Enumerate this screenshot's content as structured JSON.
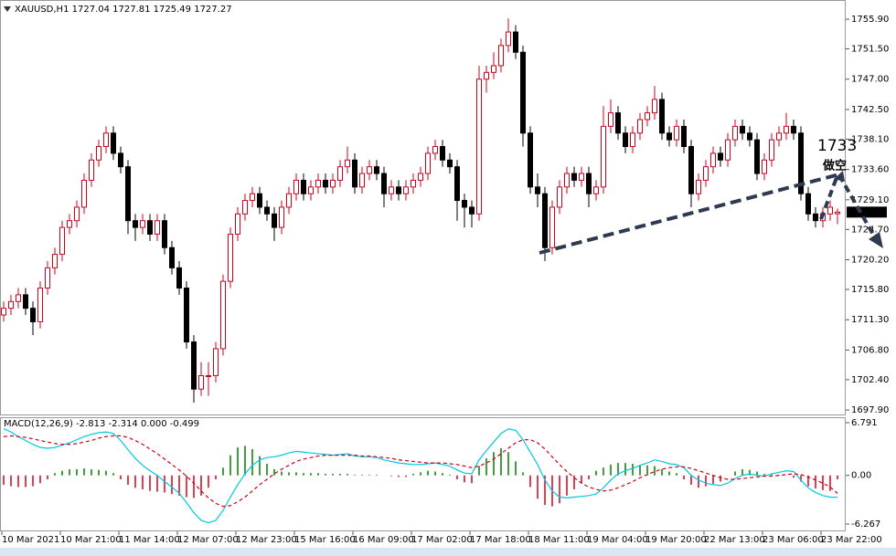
{
  "chart_data": [
    {
      "type": "candlestick",
      "header": "XAUUSD,H1  1727.04 1727.81 1725.49 1727.27",
      "annotations": [
        "1733",
        "做空"
      ],
      "up_color": "#d0021b",
      "down_color": "#000000",
      "categories": [
        "10 Mar 2021",
        null,
        null,
        null,
        null,
        null,
        null,
        null,
        "10 Mar 21:00",
        null,
        null,
        null,
        null,
        null,
        null,
        null,
        "11 Mar 14:00",
        null,
        null,
        null,
        null,
        null,
        null,
        null,
        "12 Mar 07:00",
        null,
        null,
        null,
        null,
        null,
        null,
        null,
        "12 Mar 23:00",
        null,
        null,
        null,
        null,
        null,
        null,
        null,
        "15 Mar 16:00",
        null,
        null,
        null,
        null,
        null,
        null,
        null,
        "16 Mar 09:00",
        null,
        null,
        null,
        null,
        null,
        null,
        null,
        "17 Mar 02:00",
        null,
        null,
        null,
        null,
        null,
        null,
        null,
        "17 Mar 18:00",
        null,
        null,
        null,
        null,
        null,
        null,
        null,
        "18 Mar 11:00",
        null,
        null,
        null,
        null,
        null,
        null,
        null,
        "19 Mar 04:00",
        null,
        null,
        null,
        null,
        null,
        null,
        null,
        "19 Mar 20:00",
        null,
        null,
        null,
        null,
        null,
        null,
        null,
        "22 Mar 13:00",
        null,
        null,
        null,
        null,
        null,
        null,
        null,
        "23 Mar 06:00",
        null,
        null,
        null,
        null,
        null,
        null,
        null,
        "23 Mar 22:00",
        null,
        null
      ],
      "candles": [
        [
          1712,
          1714,
          1711,
          1713
        ],
        [
          1713,
          1715,
          1712,
          1714
        ],
        [
          1714,
          1716,
          1713,
          1715
        ],
        [
          1715,
          1716,
          1712,
          1713
        ],
        [
          1713,
          1714,
          1709,
          1711
        ],
        [
          1711,
          1717,
          1710,
          1716
        ],
        [
          1716,
          1720,
          1715,
          1719
        ],
        [
          1719,
          1722,
          1718,
          1721
        ],
        [
          1721,
          1726,
          1720,
          1725
        ],
        [
          1725,
          1727,
          1724,
          1726
        ],
        [
          1726,
          1729,
          1725,
          1728
        ],
        [
          1728,
          1733,
          1727,
          1732
        ],
        [
          1732,
          1736,
          1731,
          1735
        ],
        [
          1735,
          1738,
          1734,
          1737
        ],
        [
          1737,
          1740,
          1736,
          1739
        ],
        [
          1739,
          1740,
          1735,
          1736
        ],
        [
          1736,
          1737,
          1733,
          1734
        ],
        [
          1734,
          1735,
          1724,
          1726
        ],
        [
          1726,
          1727,
          1723,
          1725
        ],
        [
          1725,
          1727,
          1724,
          1726
        ],
        [
          1726,
          1727,
          1723,
          1724
        ],
        [
          1724,
          1727,
          1723,
          1726
        ],
        [
          1726,
          1727,
          1721,
          1722
        ],
        [
          1722,
          1723,
          1718,
          1719
        ],
        [
          1719,
          1720,
          1715,
          1716
        ],
        [
          1716,
          1717,
          1707,
          1708
        ],
        [
          1708,
          1709,
          1699,
          1701
        ],
        [
          1701,
          1705,
          1700,
          1703
        ],
        [
          1703,
          1705,
          1700,
          1703
        ],
        [
          1703,
          1708,
          1702,
          1707
        ],
        [
          1707,
          1718,
          1706,
          1717
        ],
        [
          1717,
          1725,
          1716,
          1724
        ],
        [
          1724,
          1728,
          1723,
          1727
        ],
        [
          1727,
          1730,
          1726,
          1729
        ],
        [
          1729,
          1731,
          1728,
          1730
        ],
        [
          1730,
          1731,
          1727,
          1728
        ],
        [
          1728,
          1729,
          1726,
          1727
        ],
        [
          1727,
          1728,
          1723,
          1725
        ],
        [
          1725,
          1729,
          1724,
          1728
        ],
        [
          1728,
          1731,
          1727,
          1730
        ],
        [
          1730,
          1733,
          1729,
          1732
        ],
        [
          1732,
          1733,
          1729,
          1730
        ],
        [
          1730,
          1732,
          1729,
          1731
        ],
        [
          1731,
          1733,
          1730,
          1732
        ],
        [
          1732,
          1733,
          1730,
          1731
        ],
        [
          1731,
          1733,
          1730,
          1732
        ],
        [
          1732,
          1735,
          1731,
          1734
        ],
        [
          1734,
          1737,
          1733,
          1735
        ],
        [
          1735,
          1736,
          1730,
          1731
        ],
        [
          1731,
          1734,
          1730,
          1733
        ],
        [
          1733,
          1735,
          1732,
          1734
        ],
        [
          1734,
          1735,
          1732,
          1733
        ],
        [
          1733,
          1734,
          1728,
          1730
        ],
        [
          1730,
          1732,
          1729,
          1731
        ],
        [
          1731,
          1732,
          1729,
          1730
        ],
        [
          1730,
          1732,
          1729,
          1731
        ],
        [
          1731,
          1733,
          1730,
          1732
        ],
        [
          1732,
          1734,
          1731,
          1733
        ],
        [
          1733,
          1737,
          1732,
          1736
        ],
        [
          1736,
          1738,
          1735,
          1737
        ],
        [
          1737,
          1738,
          1734,
          1735
        ],
        [
          1735,
          1736,
          1733,
          1734
        ],
        [
          1734,
          1735,
          1726,
          1729
        ],
        [
          1729,
          1730,
          1725,
          1728
        ],
        [
          1728,
          1729,
          1725,
          1727
        ],
        [
          1727,
          1749,
          1726,
          1747
        ],
        [
          1747,
          1749,
          1745,
          1748
        ],
        [
          1748,
          1751,
          1747,
          1749
        ],
        [
          1749,
          1753,
          1748,
          1752
        ],
        [
          1752,
          1756,
          1751,
          1754
        ],
        [
          1754,
          1755,
          1750,
          1751
        ],
        [
          1751,
          1752,
          1737,
          1739
        ],
        [
          1739,
          1740,
          1730,
          1731
        ],
        [
          1731,
          1733,
          1728,
          1730
        ],
        [
          1730,
          1731,
          1720,
          1722
        ],
        [
          1722,
          1729,
          1721,
          1728
        ],
        [
          1728,
          1732,
          1727,
          1731
        ],
        [
          1731,
          1734,
          1730,
          1733
        ],
        [
          1733,
          1734,
          1731,
          1732
        ],
        [
          1732,
          1734,
          1731,
          1733
        ],
        [
          1733,
          1734,
          1728,
          1730
        ],
        [
          1730,
          1732,
          1729,
          1731
        ],
        [
          1731,
          1743,
          1730,
          1740
        ],
        [
          1740,
          1744,
          1739,
          1742
        ],
        [
          1742,
          1743,
          1738,
          1739
        ],
        [
          1739,
          1740,
          1736,
          1737
        ],
        [
          1737,
          1740,
          1736,
          1739
        ],
        [
          1739,
          1742,
          1738,
          1741
        ],
        [
          1741,
          1743,
          1740,
          1742
        ],
        [
          1742,
          1746,
          1741,
          1744
        ],
        [
          1744,
          1745,
          1738,
          1739
        ],
        [
          1739,
          1740,
          1737,
          1738
        ],
        [
          1738,
          1741,
          1737,
          1740
        ],
        [
          1740,
          1741,
          1736,
          1737
        ],
        [
          1737,
          1738,
          1728,
          1730
        ],
        [
          1730,
          1733,
          1729,
          1732
        ],
        [
          1732,
          1735,
          1731,
          1734
        ],
        [
          1734,
          1737,
          1733,
          1736
        ],
        [
          1736,
          1737,
          1734,
          1735
        ],
        [
          1735,
          1739,
          1734,
          1738
        ],
        [
          1738,
          1741,
          1737,
          1740
        ],
        [
          1740,
          1741,
          1738,
          1739
        ],
        [
          1739,
          1740,
          1737,
          1738
        ],
        [
          1738,
          1739,
          1732,
          1733
        ],
        [
          1733,
          1736,
          1732,
          1735
        ],
        [
          1735,
          1739,
          1734,
          1738
        ],
        [
          1738,
          1740,
          1737,
          1739
        ],
        [
          1739,
          1742,
          1738,
          1740
        ],
        [
          1740,
          1741,
          1738,
          1739
        ],
        [
          1739,
          1740,
          1729,
          1730
        ],
        [
          1730,
          1731,
          1726,
          1727
        ],
        [
          1727,
          1728,
          1725,
          1726
        ],
        [
          1726,
          1728,
          1725,
          1727
        ],
        [
          1727,
          1729,
          1726,
          1728
        ],
        [
          1727.04,
          1727.81,
          1725.49,
          1727.27
        ]
      ],
      "ylim": [
        1697.1,
        1758.75
      ],
      "yticks": [
        {
          "value": 1755.9,
          "label": "1755.90"
        },
        {
          "value": 1751.5,
          "label": "1751.50"
        },
        {
          "value": 1747,
          "label": "1747.00"
        },
        {
          "value": 1742.5,
          "label": "1742.50"
        },
        {
          "value": 1738.1,
          "label": "1738.10"
        },
        {
          "value": 1733.6,
          "label": "1733.60"
        },
        {
          "value": 1729.1,
          "label": "1729.10"
        },
        {
          "value": 1724.7,
          "label": "1724.70"
        },
        {
          "value": 1720.2,
          "label": "1720.20"
        },
        {
          "value": 1715.8,
          "label": "1715.80"
        },
        {
          "value": 1711.3,
          "label": "1711.30"
        },
        {
          "value": 1706.8,
          "label": "1706.80"
        },
        {
          "value": 1702.4,
          "label": "1702.40"
        },
        {
          "value": 1697.9,
          "label": "1697.90"
        }
      ]
    },
    {
      "type": "macd",
      "header": "MACD(12,26,9) -2.813 -2.314 0.000 -0.499",
      "ylim": [
        -7.21,
        7.38
      ],
      "yticks": [
        6.791,
        {
          "value": 0,
          "label": "0.00"
        },
        -6.267
      ],
      "series": [
        {
          "kind": "histogram",
          "color": "#008000",
          "neg_color": "#d0021b",
          "values": [
            -1.2,
            -1.4,
            -1.5,
            -1.5,
            -1.4,
            -1.0,
            -0.5,
            0.3,
            0.6,
            0.8,
            0.8,
            0.9,
            0.8,
            0.7,
            0.6,
            0.3,
            -0.5,
            -1.2,
            -1.6,
            -1.8,
            -2.0,
            -2.1,
            -2.2,
            -2.4,
            -2.6,
            -2.8,
            -2.9,
            -2.6,
            -1.6,
            -0.5,
            1.0,
            2.6,
            3.6,
            3.8,
            3.4,
            2.5,
            1.5,
            0.8,
            0.5,
            0.4,
            0.4,
            0.3,
            0.3,
            0.3,
            0.2,
            0.2,
            0.2,
            0.2,
            0.1,
            0.1,
            0.1,
            0.1,
            0.0,
            -0.1,
            -0.2,
            -0.2,
            0.2,
            0.4,
            0.6,
            0.5,
            0.3,
            0.1,
            -0.5,
            -0.9,
            -1.0,
            1.2,
            2.2,
            3.0,
            3.5,
            3.0,
            1.8,
            0.4,
            -1.5,
            -3.0,
            -3.8,
            -4.0,
            -3.6,
            -2.6,
            -1.8,
            -1.0,
            -0.5,
            0.6,
            1.0,
            1.4,
            1.6,
            1.6,
            1.5,
            1.3,
            1.3,
            1.2,
            0.8,
            0.5,
            0.3,
            -0.5,
            -1.2,
            -1.6,
            -1.4,
            -1.1,
            -0.8,
            0.0,
            0.5,
            0.8,
            0.7,
            0.5,
            0.2,
            0.2,
            0.1,
            0.0,
            -0.3,
            -0.8,
            -1.4,
            -1.7,
            -1.9,
            -2.0,
            -0.499
          ]
        },
        {
          "kind": "line",
          "color": "#00c8e0",
          "values": [
            6.0,
            5.6,
            5.0,
            4.5,
            4.0,
            3.6,
            3.5,
            3.6,
            3.9,
            4.2,
            4.6,
            5.0,
            5.3,
            5.5,
            5.6,
            5.4,
            4.5,
            3.3,
            2.2,
            1.3,
            0.6,
            0.0,
            -0.8,
            -1.5,
            -2.3,
            -3.5,
            -4.8,
            -5.8,
            -6.1,
            -5.8,
            -4.5,
            -2.8,
            -1.2,
            0.2,
            1.3,
            2.0,
            2.3,
            2.4,
            2.6,
            2.9,
            3.1,
            3.0,
            2.9,
            2.8,
            2.7,
            2.6,
            2.7,
            2.8,
            2.5,
            2.4,
            2.4,
            2.3,
            2.0,
            1.8,
            1.6,
            1.5,
            1.4,
            1.4,
            1.5,
            1.6,
            1.4,
            1.2,
            0.7,
            0.3,
            0.2,
            2.0,
            3.2,
            4.3,
            5.4,
            6.0,
            5.8,
            4.6,
            3.0,
            1.4,
            -0.6,
            -2.0,
            -2.8,
            -2.9,
            -2.8,
            -2.7,
            -2.6,
            -2.4,
            -1.6,
            -0.6,
            0.2,
            0.6,
            0.9,
            1.3,
            1.6,
            2.0,
            1.8,
            1.5,
            1.4,
            1.0,
            0.0,
            -0.6,
            -1.0,
            -1.2,
            -1.3,
            -1.0,
            -0.4,
            0.0,
            0.2,
            0.0,
            -0.1,
            0.2,
            0.4,
            0.6,
            0.5,
            -0.6,
            -1.6,
            -2.2,
            -2.6,
            -2.8,
            -2.813
          ]
        },
        {
          "kind": "dashed",
          "color": "#d0021b",
          "values": [
            5.0,
            5.1,
            5.0,
            4.9,
            4.7,
            4.5,
            4.3,
            4.1,
            4.0,
            4.0,
            4.1,
            4.3,
            4.5,
            4.8,
            5.0,
            5.1,
            5.1,
            4.9,
            4.5,
            4.0,
            3.4,
            2.8,
            2.1,
            1.4,
            0.7,
            -0.1,
            -1.0,
            -2.0,
            -2.9,
            -3.6,
            -4.0,
            -3.9,
            -3.4,
            -2.8,
            -2.0,
            -1.2,
            -0.5,
            0.2,
            0.8,
            1.3,
            1.8,
            2.1,
            2.3,
            2.5,
            2.6,
            2.6,
            2.6,
            2.6,
            2.6,
            2.5,
            2.5,
            2.4,
            2.3,
            2.2,
            2.0,
            1.9,
            1.8,
            1.7,
            1.6,
            1.6,
            1.6,
            1.5,
            1.4,
            1.2,
            1.0,
            1.2,
            1.6,
            2.1,
            2.8,
            3.5,
            4.2,
            4.6,
            4.6,
            4.2,
            3.4,
            2.4,
            1.4,
            0.5,
            -0.3,
            -1.0,
            -1.5,
            -1.8,
            -2.0,
            -1.9,
            -1.6,
            -1.2,
            -0.8,
            -0.3,
            0.1,
            0.5,
            0.8,
            1.0,
            1.1,
            1.1,
            0.9,
            0.6,
            0.3,
            0.0,
            -0.3,
            -0.5,
            -0.5,
            -0.4,
            -0.3,
            -0.2,
            -0.1,
            -0.1,
            0.0,
            0.1,
            0.2,
            0.1,
            -0.2,
            -0.6,
            -1.0,
            -1.5,
            -2.314
          ]
        }
      ]
    }
  ]
}
